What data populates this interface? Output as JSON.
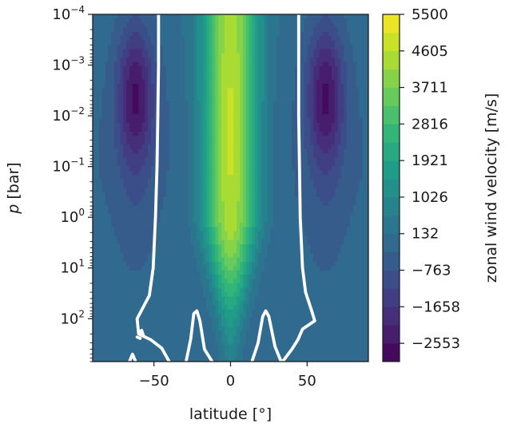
{
  "chart_data": {
    "type": "heatmap",
    "subtype": "filled contour",
    "xlabel": "latitude [°]",
    "ylabel_italic": "p",
    "ylabel_rest": " [bar]",
    "colorbar_label": "zonal wind velocity [m/s]",
    "colormap": "viridis",
    "xlim": [
      -90,
      90
    ],
    "ylim_bar": [
      0.0001,
      700
    ],
    "yscale": "log",
    "y_inverted": true,
    "x_ticks": [
      {
        "value": -50,
        "label": "−50"
      },
      {
        "value": 0,
        "label": "0"
      },
      {
        "value": 50,
        "label": "50"
      }
    ],
    "y_ticks": [
      {
        "value": 0.0001,
        "base": "10",
        "exp": "−4"
      },
      {
        "value": 0.001,
        "base": "10",
        "exp": "−3"
      },
      {
        "value": 0.01,
        "base": "10",
        "exp": "−2"
      },
      {
        "value": 0.1,
        "base": "10",
        "exp": "−1"
      },
      {
        "value": 1,
        "base": "10",
        "exp": "0"
      },
      {
        "value": 10,
        "base": "10",
        "exp": "1"
      },
      {
        "value": 100,
        "base": "10",
        "exp": "2"
      }
    ],
    "colorbar_range": [
      -3000,
      5500
    ],
    "colorbar_ticks": [
      {
        "value": 5500,
        "label": "5500"
      },
      {
        "value": 4605,
        "label": "4605"
      },
      {
        "value": 3711,
        "label": "3711"
      },
      {
        "value": 2816,
        "label": "2816"
      },
      {
        "value": 1921,
        "label": "1921"
      },
      {
        "value": 1026,
        "label": "1026"
      },
      {
        "value": 132,
        "label": "132"
      },
      {
        "value": -763,
        "label": "−763"
      },
      {
        "value": -1658,
        "label": "−1658"
      },
      {
        "value": -2553,
        "label": "−2553"
      }
    ],
    "zero_contour_color": "#ffffff",
    "features": {
      "equatorial_jet_peak_m_s": 5000,
      "equatorial_jet_lat_halfwidth_deg": 18,
      "high_latitude_retrograde_min_m_s": -2700,
      "retrograde_center_lat_deg": [
        -62,
        62
      ],
      "zero_wind_line_lat_deg": [
        -47,
        45
      ]
    }
  }
}
